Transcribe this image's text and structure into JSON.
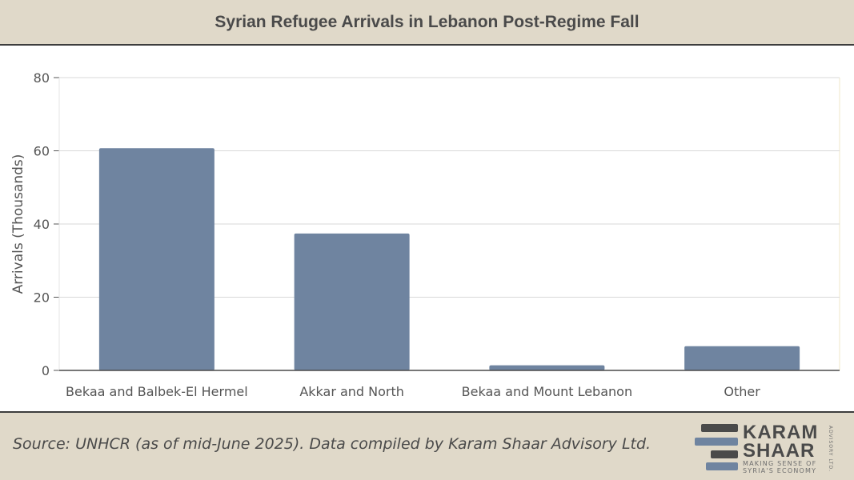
{
  "header": {
    "title": "Syrian Refugee Arrivals in Lebanon Post-Regime Fall"
  },
  "chart_data": {
    "type": "bar",
    "title": "Syrian Refugee Arrivals in Lebanon Post-Regime Fall",
    "categories": [
      "Bekaa and Balbek-El Hermel",
      "Akkar and North",
      "Bekaa and Mount Lebanon",
      "Other"
    ],
    "values": [
      60.7,
      37.4,
      1.4,
      6.6
    ],
    "xlabel": "",
    "ylabel": "Arrivals (Thousands)",
    "ylim": [
      0,
      80
    ],
    "yticks": [
      0,
      20,
      40,
      60,
      80
    ],
    "grid": true,
    "bar_color": "#6f84a0"
  },
  "footer": {
    "source": "Source: UNHCR (as of mid-June 2025). Data compiled by Karam Shaar Advisory Ltd.",
    "logo": {
      "line1": "KARAM",
      "line2": "SHAAR",
      "tagline1": "MAKING SENSE OF",
      "tagline2": "SYRIA'S ECONOMY",
      "vertical": "ADVISORY LTD.",
      "color_dark": "#4a4a4a",
      "color_blue": "#6f84a0"
    }
  }
}
